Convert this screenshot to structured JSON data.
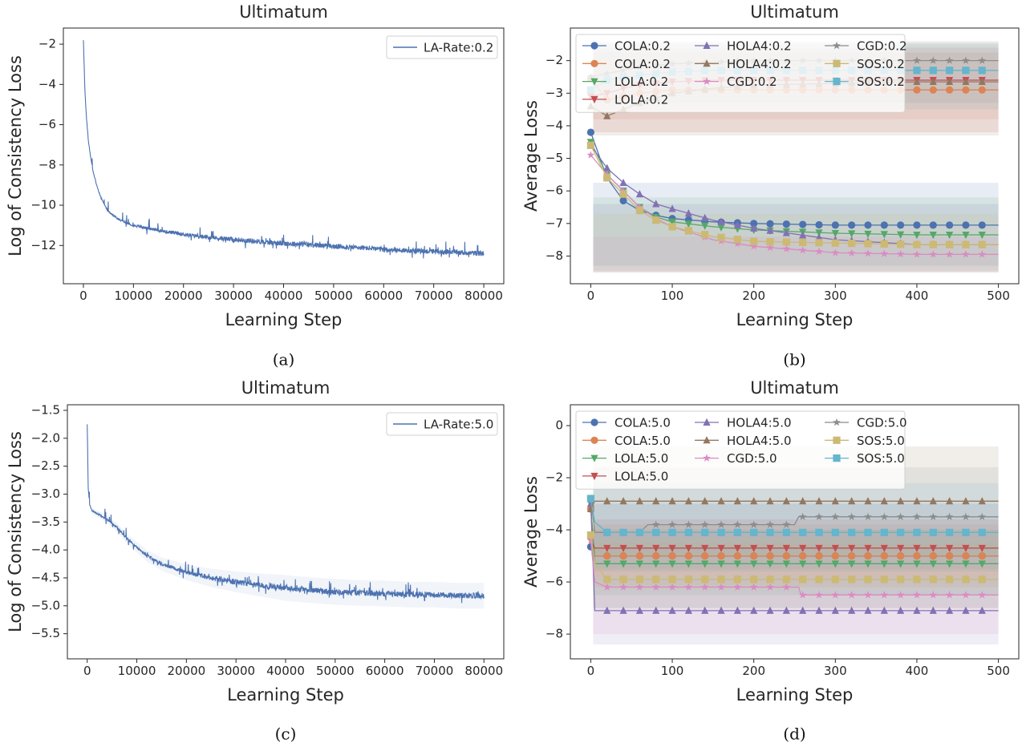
{
  "chart_data": [
    {
      "id": "a",
      "type": "line",
      "caption": "(a)",
      "title": "Ultimatum",
      "xlabel": "Learning Step",
      "ylabel": "Log of Consistency Loss",
      "xlim": [
        -4000,
        84000
      ],
      "ylim": [
        -13.9,
        -1.2
      ],
      "xticks": [
        0,
        10000,
        20000,
        30000,
        40000,
        50000,
        60000,
        70000,
        80000
      ],
      "yticks": [
        -12,
        -10,
        -8,
        -6,
        -4,
        -2
      ],
      "grid": false,
      "legend_position": "top-right",
      "series": [
        {
          "name": "LA-Rate:0.2",
          "color": "#4c72b0",
          "x": [
            0,
            300,
            600,
            1000,
            1500,
            2000,
            3000,
            4000,
            5000,
            7000,
            10000,
            15000,
            20000,
            25000,
            30000,
            35000,
            40000,
            45000,
            50000,
            55000,
            60000,
            65000,
            70000,
            75000,
            80000
          ],
          "y": [
            -1.8,
            -4.3,
            -5.6,
            -6.8,
            -7.7,
            -8.4,
            -9.3,
            -9.9,
            -10.3,
            -10.7,
            -11.0,
            -11.25,
            -11.45,
            -11.6,
            -11.7,
            -11.8,
            -11.9,
            -11.95,
            -12.05,
            -12.1,
            -12.2,
            -12.25,
            -12.3,
            -12.35,
            -12.4
          ],
          "noise": 0.25
        }
      ]
    },
    {
      "id": "b",
      "type": "line",
      "caption": "(b)",
      "title": "Ultimatum",
      "xlabel": "Learning Step",
      "ylabel": "Average Loss",
      "xlim": [
        -25,
        525
      ],
      "ylim": [
        -8.85,
        -1.0
      ],
      "xticks": [
        0,
        100,
        200,
        300,
        400,
        500
      ],
      "yticks": [
        -8,
        -7,
        -6,
        -5,
        -4,
        -3,
        -2
      ],
      "grid": false,
      "legend_position": "top-left",
      "series": [
        {
          "name": "COLA:0.2",
          "color": "#4c72b0",
          "marker": "circle",
          "x": [
            0,
            20,
            40,
            60,
            80,
            100,
            150,
            200,
            300,
            400,
            500
          ],
          "y": [
            -4.2,
            -5.6,
            -6.3,
            -6.6,
            -6.75,
            -6.85,
            -6.95,
            -7.0,
            -7.05,
            -7.05,
            -7.05
          ],
          "band": [
            -8.3,
            -5.75
          ]
        },
        {
          "name": "COLA:0.2",
          "color": "#dd8452",
          "marker": "circle",
          "x": [
            0,
            20,
            40,
            60,
            80,
            100,
            150,
            200,
            300,
            400,
            500
          ],
          "y": [
            -2.55,
            -3.2,
            -3.1,
            -3.0,
            -2.95,
            -2.9,
            -2.9,
            -2.9,
            -2.9,
            -2.9,
            -2.9
          ],
          "band": [
            -3.8,
            -1.75
          ]
        },
        {
          "name": "LOLA:0.2",
          "color": "#55a868",
          "marker": "triangle-down",
          "x": [
            0,
            20,
            40,
            60,
            80,
            100,
            150,
            200,
            300,
            400,
            500
          ],
          "y": [
            -4.5,
            -5.5,
            -6.0,
            -6.5,
            -6.8,
            -6.95,
            -7.1,
            -7.2,
            -7.3,
            -7.35,
            -7.35
          ],
          "band": [
            -8.45,
            -6.2
          ]
        },
        {
          "name": "LOLA:0.2",
          "color": "#c44e52",
          "marker": "triangle-down",
          "x": [
            0,
            20,
            40,
            60,
            80,
            100,
            150,
            200,
            300,
            400,
            500
          ],
          "y": [
            -3.1,
            -3.0,
            -2.85,
            -2.75,
            -2.7,
            -2.65,
            -2.6,
            -2.6,
            -2.6,
            -2.6,
            -2.6
          ],
          "band": [
            -4.2,
            -1.6
          ]
        },
        {
          "name": "HOLA4:0.2",
          "color": "#8172b3",
          "marker": "triangle-up",
          "x": [
            0,
            20,
            40,
            60,
            80,
            100,
            150,
            200,
            300,
            400,
            500
          ],
          "y": [
            -4.6,
            -5.3,
            -5.75,
            -6.1,
            -6.4,
            -6.55,
            -6.9,
            -7.15,
            -7.5,
            -7.65,
            -7.65
          ],
          "band": [
            -8.5,
            -6.4
          ]
        },
        {
          "name": "HOLA4:0.2",
          "color": "#937860",
          "marker": "triangle-up",
          "x": [
            0,
            20,
            40,
            60,
            80,
            100,
            150,
            200,
            300,
            400,
            500
          ],
          "y": [
            -3.4,
            -3.7,
            -3.5,
            -3.3,
            -3.15,
            -3.0,
            -2.85,
            -2.75,
            -2.7,
            -2.65,
            -2.65
          ],
          "band": [
            -4.3,
            -1.45
          ]
        },
        {
          "name": "CGD:0.2",
          "color": "#da8bc3",
          "marker": "star",
          "x": [
            0,
            20,
            40,
            60,
            80,
            100,
            150,
            200,
            300,
            400,
            500
          ],
          "y": [
            -4.9,
            -5.5,
            -6.0,
            -6.5,
            -6.85,
            -7.1,
            -7.5,
            -7.7,
            -7.9,
            -7.95,
            -7.95
          ],
          "band": [
            -8.5,
            -7.4
          ]
        },
        {
          "name": "CGD:0.2",
          "color": "#8c8c8c",
          "marker": "star",
          "x": [
            0,
            20,
            40,
            60,
            80,
            100,
            150,
            200,
            300,
            400,
            500
          ],
          "y": [
            -2.5,
            -2.4,
            -2.3,
            -2.2,
            -2.15,
            -2.1,
            -2.05,
            -2.0,
            -2.0,
            -2.0,
            -2.0
          ],
          "band": [
            -3.3,
            -1.4
          ]
        },
        {
          "name": "SOS:0.2",
          "color": "#ccb974",
          "marker": "square",
          "x": [
            0,
            20,
            40,
            60,
            80,
            100,
            150,
            200,
            300,
            400,
            500
          ],
          "y": [
            -4.6,
            -5.6,
            -6.1,
            -6.6,
            -6.9,
            -7.1,
            -7.4,
            -7.55,
            -7.6,
            -7.65,
            -7.65
          ],
          "band": [
            -8.5,
            -6.7
          ]
        },
        {
          "name": "SOS:0.2",
          "color": "#64b5cd",
          "marker": "square",
          "x": [
            0,
            20,
            40,
            60,
            80,
            100,
            150,
            200,
            300,
            400,
            500
          ],
          "y": [
            -2.9,
            -2.6,
            -2.5,
            -2.45,
            -2.4,
            -2.35,
            -2.3,
            -2.3,
            -2.3,
            -2.3,
            -2.3
          ],
          "band": [
            -3.5,
            -1.5
          ]
        }
      ]
    },
    {
      "id": "c",
      "type": "line",
      "caption": "(c)",
      "title": "Ultimatum",
      "xlabel": "Learning Step",
      "ylabel": "Log of Consistency Loss",
      "xlim": [
        -4000,
        84000
      ],
      "ylim": [
        -5.95,
        -1.4
      ],
      "xticks": [
        0,
        10000,
        20000,
        30000,
        40000,
        50000,
        60000,
        70000,
        80000
      ],
      "yticks": [
        -5.5,
        -5.0,
        -4.5,
        -4.0,
        -3.5,
        -3.0,
        -2.5,
        -2.0,
        -1.5
      ],
      "ytick_labels": [
        "−5.5",
        "−5.0",
        "−4.5",
        "−4.0",
        "−3.5",
        "−3.0",
        "−2.5",
        "−2.0",
        "−1.5"
      ],
      "grid": false,
      "legend_position": "top-right",
      "series": [
        {
          "name": "LA-Rate:5.0",
          "color": "#4c72b0",
          "x": [
            0,
            200,
            500,
            1000,
            2000,
            3000,
            4000,
            5000,
            6000,
            7000,
            8000,
            10000,
            12000,
            15000,
            20000,
            25000,
            30000,
            35000,
            40000,
            45000,
            50000,
            55000,
            60000,
            65000,
            70000,
            75000,
            80000
          ],
          "y": [
            -1.75,
            -2.9,
            -3.2,
            -3.3,
            -3.35,
            -3.4,
            -3.45,
            -3.52,
            -3.6,
            -3.7,
            -3.8,
            -3.95,
            -4.1,
            -4.25,
            -4.4,
            -4.5,
            -4.57,
            -4.63,
            -4.68,
            -4.72,
            -4.75,
            -4.77,
            -4.78,
            -4.8,
            -4.8,
            -4.82,
            -4.82
          ],
          "noise": 0.1
        }
      ]
    },
    {
      "id": "d",
      "type": "line",
      "caption": "(d)",
      "title": "Ultimatum",
      "xlabel": "Learning Step",
      "ylabel": "Average Loss",
      "xlim": [
        -25,
        525
      ],
      "ylim": [
        -8.95,
        0.8
      ],
      "xticks": [
        0,
        100,
        200,
        300,
        400,
        500
      ],
      "yticks": [
        -8,
        -6,
        -4,
        -2,
        0
      ],
      "grid": false,
      "legend_position": "top-left",
      "series": [
        {
          "name": "COLA:5.0",
          "color": "#4c72b0",
          "marker": "circle",
          "x": [
            0,
            5,
            20,
            500
          ],
          "y": [
            -4.65,
            -5.0,
            -5.0,
            -5.0
          ],
          "band": [
            -7.0,
            -3.0
          ]
        },
        {
          "name": "COLA:5.0",
          "color": "#dd8452",
          "marker": "circle",
          "x": [
            0,
            5,
            20,
            500
          ],
          "y": [
            -3.2,
            -5.0,
            -5.0,
            -5.0
          ],
          "band": [
            -6.2,
            -3.8
          ]
        },
        {
          "name": "LOLA:5.0",
          "color": "#55a868",
          "marker": "triangle-down",
          "x": [
            0,
            5,
            20,
            500
          ],
          "y": [
            -3.0,
            -5.3,
            -5.3,
            -5.3
          ],
          "band": [
            -6.5,
            -4.0
          ]
        },
        {
          "name": "LOLA:5.0",
          "color": "#c44e52",
          "marker": "triangle-down",
          "x": [
            0,
            5,
            20,
            500
          ],
          "y": [
            -4.4,
            -4.7,
            -4.7,
            -4.7
          ],
          "band": [
            -5.8,
            -3.6
          ]
        },
        {
          "name": "HOLA4:5.0",
          "color": "#8172b3",
          "marker": "triangle-up",
          "x": [
            0,
            5,
            20,
            500
          ],
          "y": [
            -3.0,
            -7.1,
            -7.1,
            -7.1
          ],
          "band": [
            -8.4,
            -5.8
          ]
        },
        {
          "name": "HOLA4:5.0",
          "color": "#937860",
          "marker": "triangle-up",
          "x": [
            0,
            5,
            20,
            500
          ],
          "y": [
            -3.2,
            -2.9,
            -2.9,
            -2.9
          ],
          "band": [
            -5.0,
            -0.8
          ]
        },
        {
          "name": "CGD:5.0",
          "color": "#da8bc3",
          "marker": "star",
          "x": [
            0,
            5,
            20,
            255,
            258,
            500
          ],
          "y": [
            -4.4,
            -6.0,
            -6.2,
            -6.2,
            -6.5,
            -6.5
          ],
          "band": [
            -8.0,
            -5.0
          ]
        },
        {
          "name": "CGD:5.0",
          "color": "#8c8c8c",
          "marker": "star",
          "x": [
            0,
            5,
            20,
            60,
            70,
            250,
            255,
            500
          ],
          "y": [
            -2.8,
            -4.1,
            -4.1,
            -4.1,
            -3.8,
            -3.8,
            -3.5,
            -3.5
          ],
          "band": [
            -5.6,
            -1.6
          ]
        },
        {
          "name": "SOS:5.0",
          "color": "#ccb974",
          "marker": "square",
          "x": [
            0,
            5,
            20,
            500
          ],
          "y": [
            -4.2,
            -5.3,
            -5.9,
            -5.9
          ],
          "band": [
            -7.0,
            -4.5
          ]
        },
        {
          "name": "SOS:5.0",
          "color": "#64b5cd",
          "marker": "square",
          "x": [
            0,
            5,
            20,
            500
          ],
          "y": [
            -2.8,
            -3.7,
            -4.1,
            -4.1
          ],
          "band": [
            -5.5,
            -2.2
          ]
        }
      ]
    }
  ]
}
